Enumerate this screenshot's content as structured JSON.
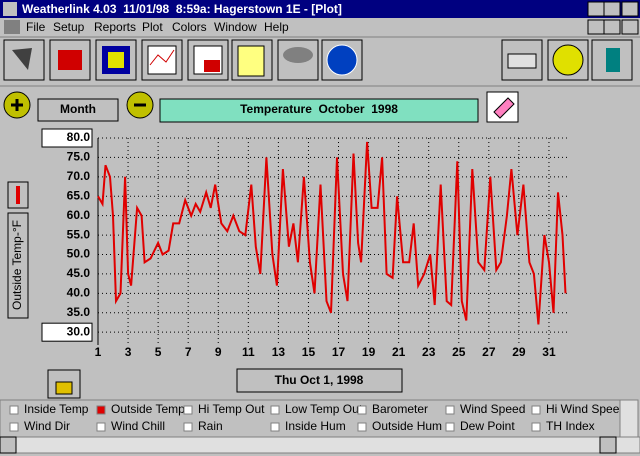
{
  "window": {
    "title": "Weatherlink 4.03  11/01/98  8:59a: Hagerstown 1E - [Plot]"
  },
  "menu": [
    "File",
    "Setup",
    "Reports",
    "Plot",
    "Colors",
    "Window",
    "Help"
  ],
  "controls": {
    "period_button": "Month",
    "date_button": "Thu Oct 1, 1998"
  },
  "chart_data": {
    "type": "line",
    "title": "Temperature  October  1998",
    "ylabel": "Outside Temp-°F",
    "series": [
      {
        "color": "#e00000",
        "x": [
          1.0,
          1.3,
          1.5,
          1.8,
          2.0,
          2.2,
          2.5,
          2.8,
          3.0,
          3.2,
          3.6,
          3.9,
          4.1,
          4.5,
          5.0,
          5.3,
          5.7,
          6.0,
          6.4,
          6.8,
          7.2,
          7.5,
          7.8,
          8.2,
          8.5,
          8.8,
          9.2,
          9.6,
          10.0,
          10.4,
          10.8,
          11.2,
          11.5,
          11.8,
          12.2,
          12.6,
          12.9,
          13.3,
          13.7,
          14.0,
          14.3,
          14.7,
          15.1,
          15.4,
          15.8,
          16.2,
          16.5,
          16.9,
          17.3,
          17.6,
          18.0,
          18.3,
          18.5,
          18.9,
          19.2,
          19.6,
          19.9,
          20.2,
          20.6,
          20.9,
          21.3,
          21.7,
          22.0,
          22.3,
          22.7,
          23.1,
          23.4,
          23.8,
          24.2,
          24.5,
          24.9,
          25.2,
          25.5,
          25.9,
          26.3,
          26.7,
          27.1,
          27.5,
          27.8,
          28.2,
          28.5,
          28.9,
          29.3,
          29.7,
          30.0,
          30.3,
          30.7,
          31.0,
          31.3,
          31.6,
          31.9,
          32.1
        ],
        "values": [
          65,
          63,
          73,
          70,
          60,
          38,
          40,
          70,
          45,
          42,
          62,
          60,
          48,
          49,
          53,
          50,
          51,
          58,
          58,
          64,
          60,
          63,
          61,
          66,
          62,
          68,
          58,
          56,
          60,
          56,
          55,
          68,
          52,
          45,
          75,
          50,
          42,
          72,
          52,
          58,
          48,
          70,
          48,
          40,
          68,
          38,
          35,
          75,
          45,
          38,
          76,
          53,
          48,
          79,
          62,
          62,
          75,
          45,
          44,
          65,
          48,
          48,
          58,
          42,
          45,
          50,
          37,
          68,
          38,
          37,
          74,
          38,
          33,
          72,
          48,
          46,
          70,
          46,
          48,
          60,
          72,
          55,
          68,
          48,
          45,
          32,
          55,
          48,
          35,
          66,
          55,
          40
        ]
      }
    ],
    "xlim": [
      1,
      32.4
    ],
    "xticks": [
      1,
      3,
      5,
      7,
      9,
      11,
      13,
      15,
      17,
      19,
      21,
      23,
      25,
      27,
      29,
      31
    ],
    "ylim": [
      26.7,
      80
    ],
    "yticks": [
      {
        "value": 30,
        "label": "30.0"
      },
      {
        "value": 35,
        "label": "35.0"
      },
      {
        "value": 40,
        "label": "40.0"
      },
      {
        "value": 45,
        "label": "45.0"
      },
      {
        "value": 50,
        "label": "50.0"
      },
      {
        "value": 55,
        "label": "55.0"
      },
      {
        "value": 60,
        "label": "60.0"
      },
      {
        "value": 65,
        "label": "65.0"
      },
      {
        "value": 70,
        "label": "70.0"
      },
      {
        "value": 75,
        "label": "75.0"
      },
      {
        "value": 80,
        "label": "80.0"
      }
    ],
    "grid": true
  },
  "checkboxes": [
    {
      "label": "Inside Temp",
      "checked": false
    },
    {
      "label": "Outside Temp",
      "checked": true
    },
    {
      "label": "Hi Temp Out",
      "checked": false
    },
    {
      "label": "Low Temp Out",
      "checked": false
    },
    {
      "label": "Barometer",
      "checked": false
    },
    {
      "label": "Wind Speed",
      "checked": false
    },
    {
      "label": "Hi Wind Speed",
      "checked": false
    },
    {
      "label": "Wind Dir",
      "checked": false
    },
    {
      "label": "Wind Chill",
      "checked": false
    },
    {
      "label": "Rain",
      "checked": false
    },
    {
      "label": "Inside Hum",
      "checked": false
    },
    {
      "label": "Outside Hum",
      "checked": false
    },
    {
      "label": "Dew Point",
      "checked": false
    },
    {
      "label": "TH Index",
      "checked": false
    }
  ]
}
